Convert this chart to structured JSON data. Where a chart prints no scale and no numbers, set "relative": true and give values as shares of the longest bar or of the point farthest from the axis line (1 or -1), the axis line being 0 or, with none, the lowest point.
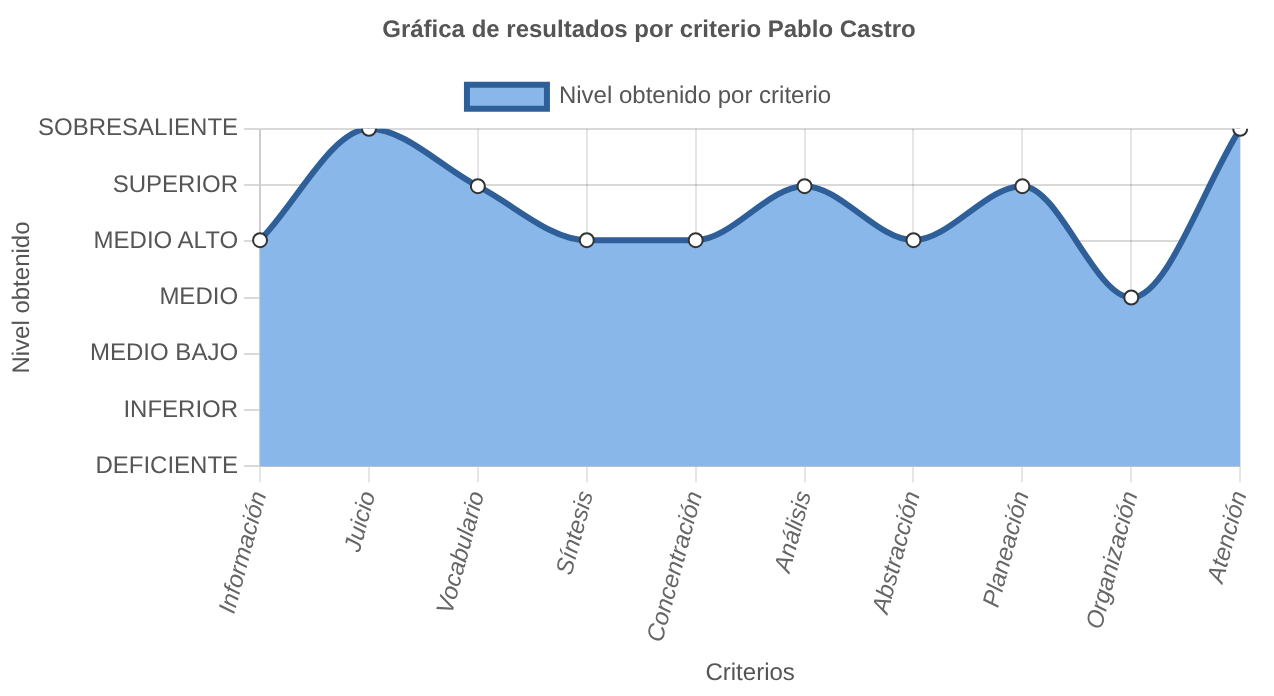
{
  "chart_data": {
    "type": "area",
    "title": "Gráfica de resultados por criterio Pablo Castro",
    "xlabel": "Criterios",
    "annotations": [
      "Nivel obtenido"
    ],
    "relative": true,
    "categories": [
      "Información",
      "Juicio",
      "Vocabulario",
      "Síntesis",
      "Concentración",
      "Análisis",
      "Abstracción",
      "Planeación",
      "Organización",
      "Atención"
    ],
    "y_categories": [
      "SOBRESALIENTE",
      "SUPERIOR",
      "MEDIO ALTO",
      "MEDIO",
      "MEDIO BAJO",
      "INFERIOR",
      "DEFICIENTE"
    ],
    "series": [
      {
        "name": "Nivel obtenido por criterio",
        "color": "#2f5f98",
        "values": [
          0.67,
          1,
          0.83,
          0.67,
          0.67,
          0.83,
          0.67,
          0.83,
          0.5,
          1
        ]
      }
    ],
    "grid": true,
    "legend": "top",
    "marker": "circle",
    "line_style": "solid"
  }
}
